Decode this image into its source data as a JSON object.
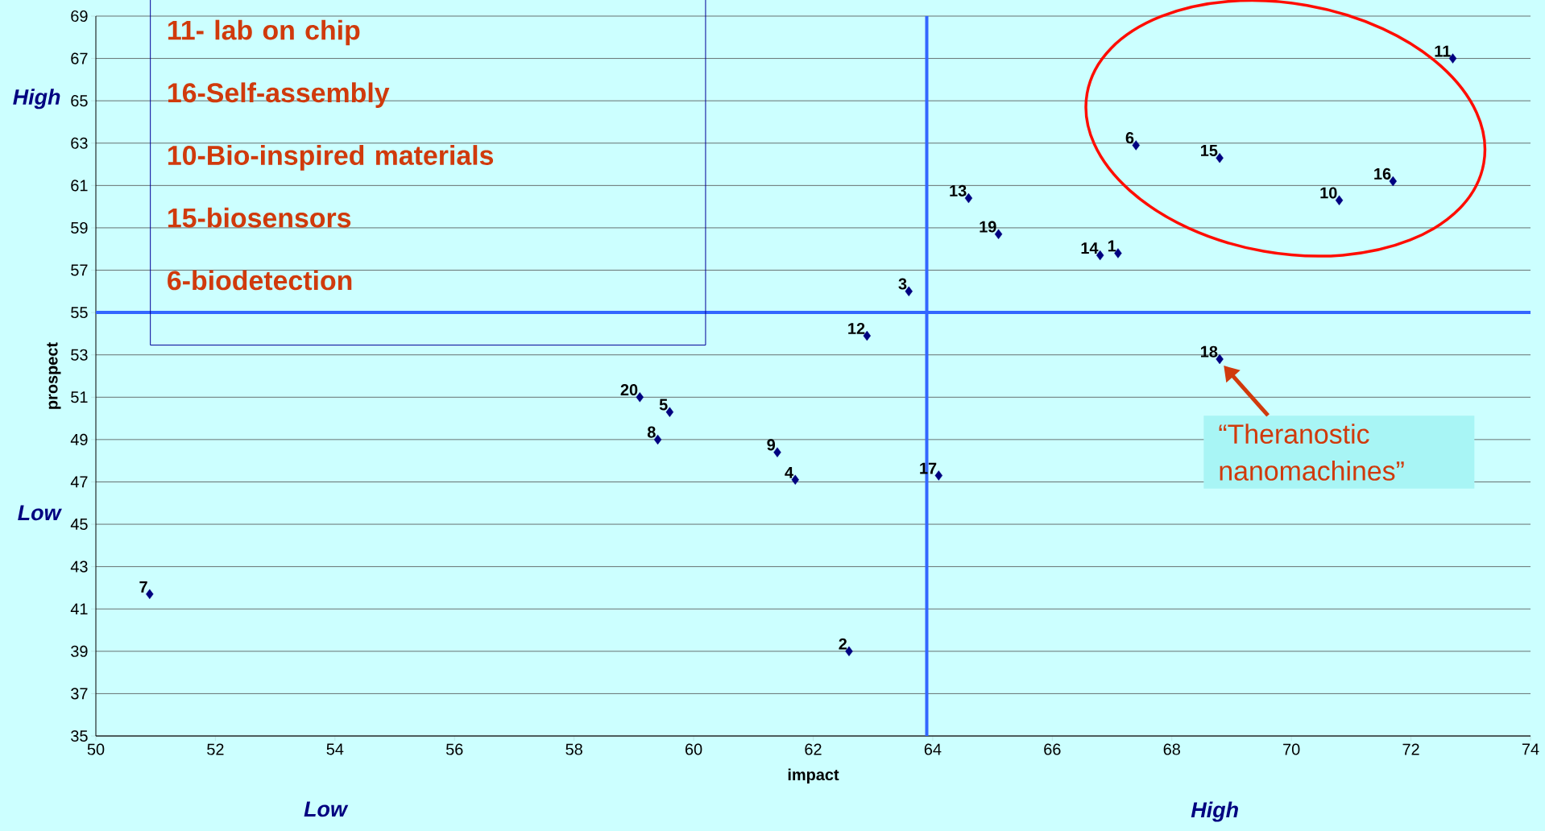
{
  "chart_data": {
    "type": "scatter",
    "xlabel": "impact",
    "ylabel": "prospect",
    "x": [
      67.1,
      62.6,
      63.6,
      61.7,
      59.6,
      67.4,
      50.9,
      59.4,
      61.4,
      70.8,
      72.7,
      62.9,
      64.6,
      66.8,
      68.8,
      71.7,
      64.1,
      68.8,
      65.1,
      59.1
    ],
    "series": [
      {
        "color": "#000080",
        "values": [
          57.8,
          39.0,
          56.0,
          47.1,
          50.3,
          62.9,
          41.7,
          49.0,
          48.4,
          60.3,
          67.0,
          53.9,
          60.4,
          57.7,
          62.3,
          61.2,
          47.3,
          52.8,
          58.7,
          51.0
        ]
      }
    ],
    "value_labels": [
      "1",
      "2",
      "3",
      "4",
      "5",
      "6",
      "7",
      "8",
      "9",
      "10",
      "11",
      "12",
      "13",
      "14",
      "15",
      "16",
      "17",
      "18",
      "19",
      "20"
    ],
    "marker": "diamond",
    "grid": "y",
    "xlim": [
      50,
      74
    ],
    "xticks": [
      50,
      52,
      54,
      56,
      58,
      60,
      62,
      64,
      66,
      68,
      70,
      72,
      74
    ],
    "ylim": [
      35,
      69
    ],
    "yticks": [
      35,
      37,
      39,
      41,
      43,
      45,
      47,
      49,
      51,
      53,
      55,
      57,
      59,
      61,
      63,
      65,
      67,
      69
    ],
    "ref_lines": [
      {
        "axis": "x",
        "value": 63.9,
        "color": "#3366ff"
      },
      {
        "axis": "y",
        "value": 55,
        "color": "#3366ff"
      }
    ],
    "annotations": [
      "High",
      "Low",
      "Low",
      "High",
      "11- lab on chip",
      "16-Self-assembly",
      "10-Bio-inspired materials",
      "15-biosensors",
      "6-biodetection",
      {
        "text": "“Theranostic nanomachines”",
        "x": 68.8,
        "y": 52.8
      }
    ]
  }
}
